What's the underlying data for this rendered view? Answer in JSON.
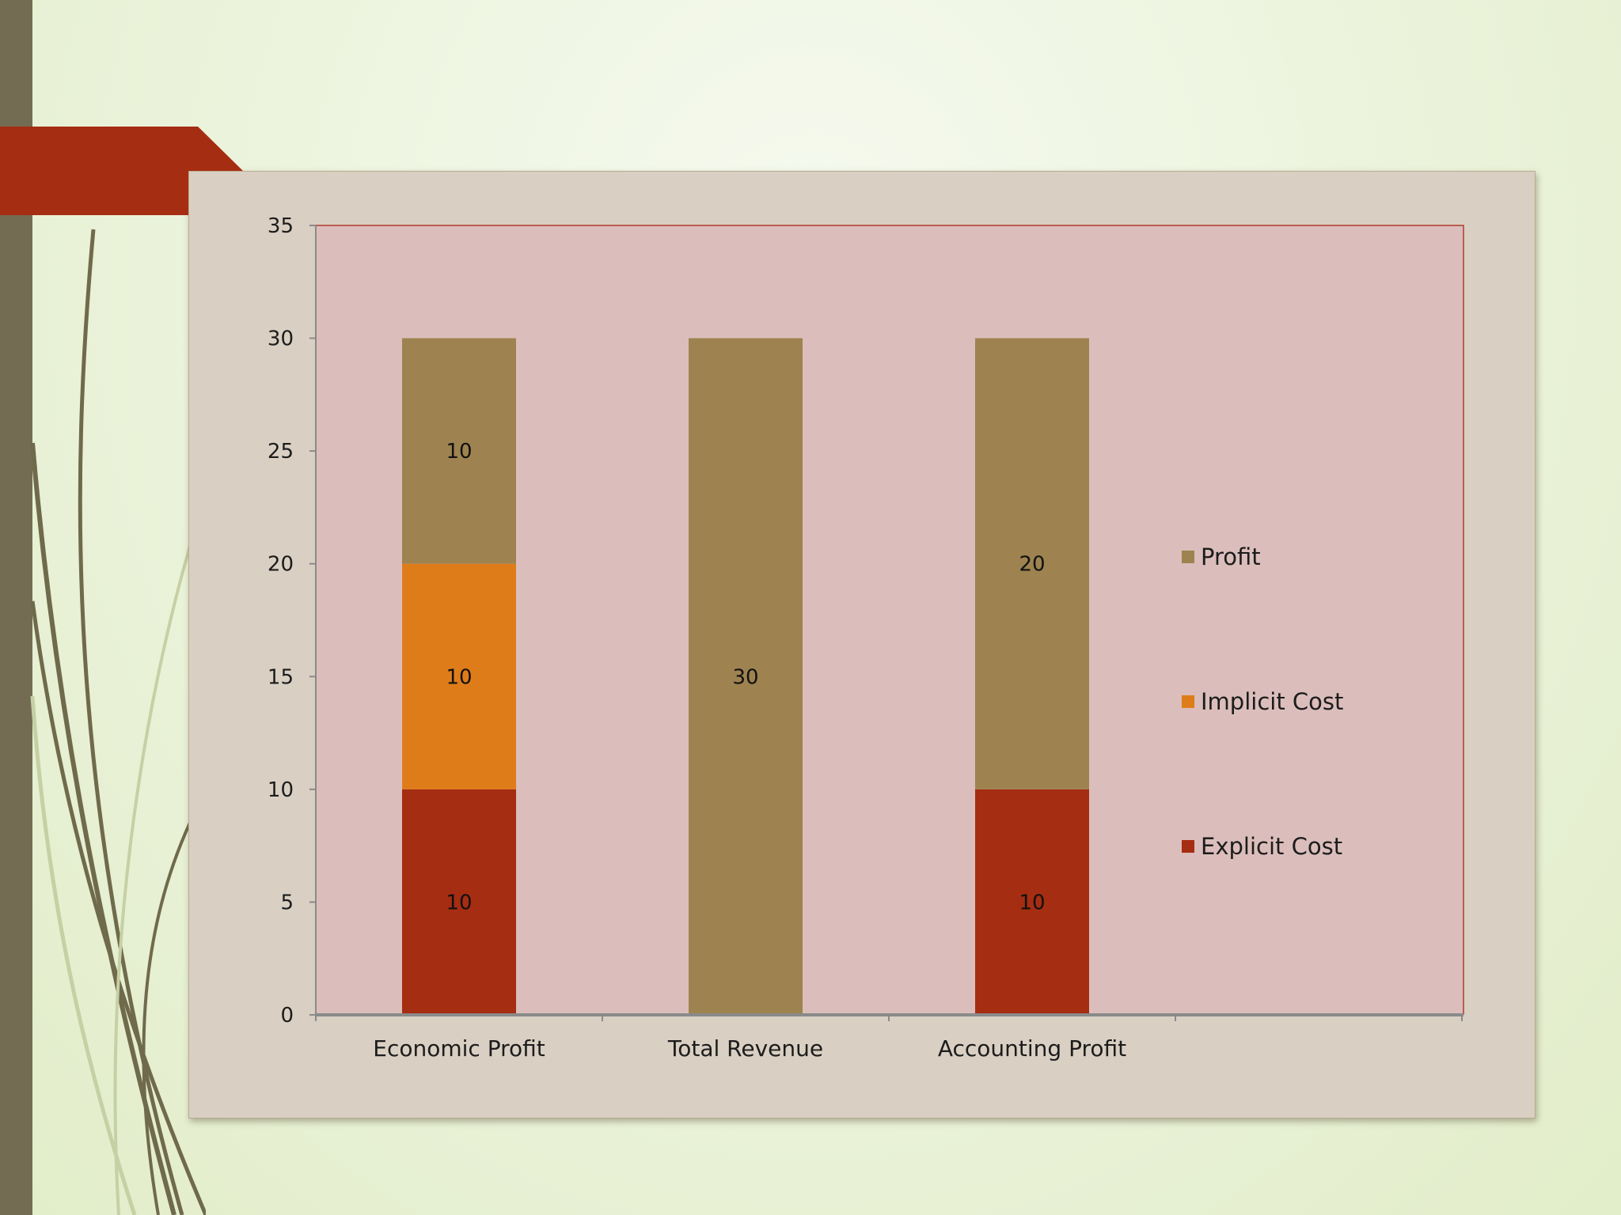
{
  "colors": {
    "profit": "#9e8350",
    "implicit_cost": "#df7c1a",
    "explicit_cost": "#a52d12",
    "plot_bg": "#dbbebb",
    "frame_bg": "#d9cfc3",
    "ribbon": "#a52d12",
    "left_bar": "#736c53"
  },
  "chart_data": {
    "type": "bar",
    "stacked": true,
    "title": "",
    "xlabel": "",
    "ylabel": "",
    "ylim": [
      0,
      35
    ],
    "yticks": [
      0,
      5,
      10,
      15,
      20,
      25,
      30,
      35
    ],
    "categories": [
      "Economic Profit",
      "Total Revenue",
      "Accounting Profit"
    ],
    "series": [
      {
        "name": "Explicit Cost",
        "color": "#a52d12",
        "values": [
          10,
          0,
          10
        ]
      },
      {
        "name": "Implicit Cost",
        "color": "#df7c1a",
        "values": [
          10,
          0,
          0
        ]
      },
      {
        "name": "Profit",
        "color": "#9e8350",
        "values": [
          10,
          30,
          20
        ]
      }
    ],
    "legend": {
      "placement": "right",
      "entries": [
        "Profit",
        "Implicit Cost",
        "Explicit Cost"
      ]
    },
    "grid": false
  }
}
